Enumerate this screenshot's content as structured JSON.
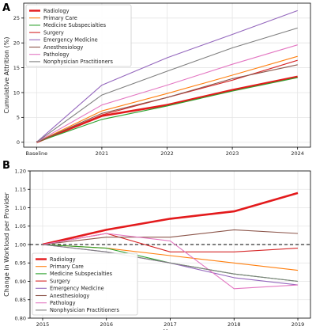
{
  "colors": {
    "Radiology": "#e31a1c",
    "Primary Care": "#ff7f0e",
    "Medicine Subspecialties": "#2ca02c",
    "Surgery": "#d62728",
    "Emergency Medicine": "#9467bd",
    "Anesthesiology": "#8c564b",
    "Pathology": "#e377c2",
    "Nonphysician Practitioners": "#7f7f7f"
  },
  "chart_data": [
    {
      "panel": "A",
      "type": "line",
      "ylabel": "Cumulative Attrition (%)",
      "xlabel": "",
      "categories": [
        "Baseline",
        "2021",
        "2022",
        "2023",
        "2024"
      ],
      "ylim": [
        -1,
        28
      ],
      "yticks": [
        0,
        5,
        10,
        15,
        20,
        25
      ],
      "grid": true,
      "legend": "top-left",
      "series": [
        {
          "name": "Radiology",
          "values": [
            0,
            5.3,
            7.5,
            10.5,
            13.2
          ]
        },
        {
          "name": "Primary Care",
          "values": [
            0,
            6.3,
            9.8,
            13.5,
            17.3
          ]
        },
        {
          "name": "Medicine Subspecialties",
          "values": [
            0,
            4.6,
            7.3,
            10.3,
            13.0
          ]
        },
        {
          "name": "Surgery",
          "values": [
            0,
            5.5,
            9.0,
            12.5,
            16.5
          ]
        },
        {
          "name": "Emergency Medicine",
          "values": [
            0,
            11.5,
            17.0,
            21.7,
            26.5
          ]
        },
        {
          "name": "Anesthesiology",
          "values": [
            0,
            5.8,
            9.0,
            12.8,
            15.6
          ]
        },
        {
          "name": "Pathology",
          "values": [
            0,
            7.5,
            11.5,
            15.7,
            19.6
          ]
        },
        {
          "name": "Nonphysician Practitioners",
          "values": [
            0,
            9.5,
            14.3,
            19.0,
            23.0
          ]
        }
      ]
    },
    {
      "panel": "B",
      "type": "line",
      "ylabel": "Change in Workload per Provider",
      "xlabel": "Year",
      "x": [
        2015,
        2016,
        2017,
        2018,
        2019
      ],
      "ylim": [
        0.8,
        1.2
      ],
      "yticks": [
        "0.80",
        "0.85",
        "0.90",
        "0.95",
        "1.00",
        "1.05",
        "1.10",
        "1.15",
        "1.20"
      ],
      "reference_line": 1.0,
      "grid": true,
      "legend": "bottom-left",
      "series": [
        {
          "name": "Radiology",
          "values": [
            1.0,
            1.04,
            1.07,
            1.09,
            1.14
          ]
        },
        {
          "name": "Primary Care",
          "values": [
            1.0,
            0.99,
            0.97,
            0.95,
            0.93
          ]
        },
        {
          "name": "Medicine Subspecialties",
          "values": [
            1.0,
            0.99,
            0.95,
            0.92,
            0.9
          ]
        },
        {
          "name": "Surgery",
          "values": [
            1.0,
            1.03,
            0.98,
            0.98,
            0.99
          ]
        },
        {
          "name": "Emergency Medicine",
          "values": [
            1.0,
            0.98,
            0.95,
            0.91,
            0.89
          ]
        },
        {
          "name": "Anesthesiology",
          "values": [
            1.0,
            1.02,
            1.02,
            1.04,
            1.03
          ]
        },
        {
          "name": "Pathology",
          "values": [
            1.0,
            1.03,
            1.01,
            0.88,
            0.89
          ]
        },
        {
          "name": "Nonphysician Practitioners",
          "values": [
            1.0,
            0.98,
            0.95,
            0.92,
            0.9
          ]
        }
      ]
    }
  ]
}
